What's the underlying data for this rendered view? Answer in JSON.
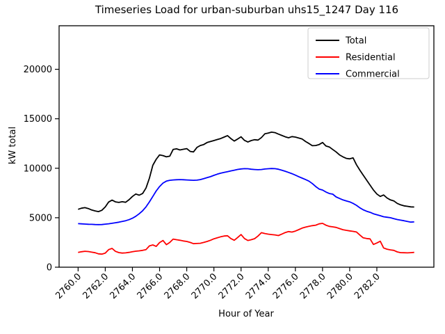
{
  "chart_data": {
    "type": "line",
    "title": "Timeseries Load for urban-suburban uhs15_1247  Day 116",
    "xlabel": "Hour of Year",
    "ylabel": "kW total",
    "xlim": [
      2758.6,
      2786.2
    ],
    "ylim": [
      0,
      24400
    ],
    "grid": false,
    "legend_position": "upper right",
    "x_tick_values": [
      2760,
      2762,
      2764,
      2766,
      2768,
      2770,
      2772,
      2774,
      2776,
      2778,
      2780,
      2782
    ],
    "x_tick_labels": [
      "2760.0",
      "2762.0",
      "2764.0",
      "2766.0",
      "2768.0",
      "2770.0",
      "2772.0",
      "2774.0",
      "2776.0",
      "2778.0",
      "2780.0",
      "2782.0"
    ],
    "y_tick_values": [
      0,
      5000,
      10000,
      15000,
      20000
    ],
    "y_tick_labels": [
      "0",
      "5000",
      "10000",
      "15000",
      "20000"
    ],
    "x_start": 2760.0,
    "x_step": 0.25,
    "series": [
      {
        "name": "Total",
        "color": "#000000",
        "values": [
          5850,
          5960,
          6020,
          5930,
          5780,
          5690,
          5620,
          5750,
          6090,
          6590,
          6780,
          6600,
          6550,
          6620,
          6560,
          6820,
          7150,
          7400,
          7280,
          7450,
          8000,
          9000,
          10300,
          10900,
          11350,
          11280,
          11150,
          11220,
          11900,
          11960,
          11850,
          11920,
          11980,
          11700,
          11650,
          12100,
          12300,
          12400,
          12600,
          12700,
          12800,
          12900,
          13000,
          13150,
          13300,
          13000,
          12750,
          12950,
          13180,
          12820,
          12650,
          12800,
          12880,
          12850,
          13100,
          13480,
          13550,
          13650,
          13600,
          13450,
          13320,
          13180,
          13080,
          13200,
          13150,
          13050,
          12950,
          12700,
          12500,
          12280,
          12300,
          12400,
          12600,
          12250,
          12150,
          11900,
          11650,
          11350,
          11150,
          11000,
          10950,
          11050,
          10350,
          9800,
          9300,
          8800,
          8300,
          7800,
          7400,
          7150,
          7300,
          7000,
          6800,
          6700,
          6450,
          6300,
          6200,
          6150,
          6100,
          6080
        ]
      },
      {
        "name": "Residential",
        "color": "#ff0000",
        "values": [
          1500,
          1560,
          1610,
          1580,
          1520,
          1460,
          1350,
          1320,
          1420,
          1780,
          1900,
          1600,
          1480,
          1430,
          1450,
          1500,
          1560,
          1620,
          1650,
          1700,
          1780,
          2150,
          2250,
          2100,
          2490,
          2700,
          2280,
          2500,
          2840,
          2780,
          2720,
          2650,
          2600,
          2500,
          2380,
          2400,
          2420,
          2500,
          2600,
          2720,
          2870,
          2970,
          3070,
          3150,
          3180,
          2900,
          2720,
          3000,
          3300,
          2900,
          2700,
          2780,
          2880,
          3150,
          3490,
          3400,
          3340,
          3300,
          3260,
          3200,
          3350,
          3500,
          3600,
          3550,
          3650,
          3800,
          3950,
          4050,
          4130,
          4200,
          4250,
          4380,
          4430,
          4250,
          4130,
          4080,
          4020,
          3900,
          3790,
          3730,
          3670,
          3620,
          3560,
          3250,
          2970,
          2900,
          2860,
          2300,
          2450,
          2620,
          1950,
          1820,
          1750,
          1700,
          1550,
          1470,
          1460,
          1450,
          1470,
          1500
        ]
      },
      {
        "name": "Commercial",
        "color": "#0000ff",
        "values": [
          4400,
          4380,
          4360,
          4340,
          4330,
          4310,
          4300,
          4310,
          4350,
          4390,
          4440,
          4490,
          4550,
          4620,
          4700,
          4800,
          4950,
          5150,
          5400,
          5700,
          6100,
          6600,
          7150,
          7700,
          8150,
          8500,
          8700,
          8780,
          8820,
          8840,
          8850,
          8840,
          8820,
          8800,
          8780,
          8800,
          8850,
          8950,
          9050,
          9150,
          9280,
          9400,
          9500,
          9580,
          9650,
          9730,
          9800,
          9880,
          9930,
          9960,
          9950,
          9900,
          9870,
          9850,
          9870,
          9920,
          9950,
          9970,
          9960,
          9900,
          9800,
          9700,
          9580,
          9450,
          9300,
          9150,
          9000,
          8850,
          8700,
          8450,
          8150,
          7900,
          7800,
          7600,
          7450,
          7380,
          7100,
          6950,
          6800,
          6700,
          6600,
          6450,
          6250,
          6000,
          5800,
          5650,
          5550,
          5400,
          5300,
          5200,
          5100,
          5050,
          5000,
          4900,
          4820,
          4750,
          4700,
          4620,
          4560,
          4580
        ]
      }
    ]
  },
  "colors": {
    "axes": "#000000",
    "legend_border": "#cccccc",
    "background": "#ffffff"
  }
}
